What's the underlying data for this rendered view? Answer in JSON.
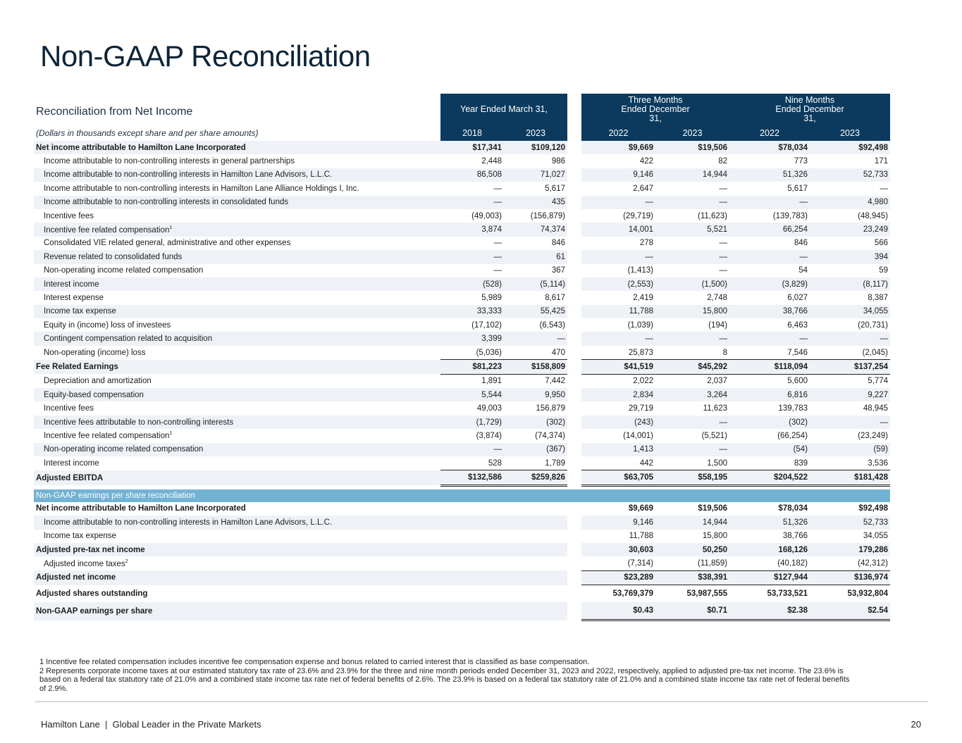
{
  "title": "Non-GAAP Reconciliation",
  "table": {
    "caption": "Reconciliation from Net Income",
    "subcaption": "(Dollars in thousands except share and per share amounts)",
    "group_headers": [
      "Year Ended March 31,",
      "Three Months Ended December 31,",
      "Nine Months Ended December 31,"
    ],
    "columns": [
      "2018",
      "2023",
      "2022",
      "2023",
      "2022",
      "2023"
    ],
    "rows": [
      {
        "label": "Net income attributable to Hamilton Lane Incorporated",
        "values": [
          "$17,341",
          "$109,120",
          "$9,669",
          "$19,506",
          "$78,034",
          "$92,498"
        ]
      },
      {
        "label": "Income attributable to non-controlling interests in general partnerships",
        "values": [
          "2,448",
          "986",
          "422",
          "82",
          "773",
          "171"
        ]
      },
      {
        "label": "Income attributable to non-controlling interests in Hamilton Lane Advisors, L.L.C.",
        "values": [
          "86,508",
          "71,027",
          "9,146",
          "14,944",
          "51,326",
          "52,733"
        ]
      },
      {
        "label": "Income attributable to non-controlling interests in Hamilton Lane Alliance Holdings I, Inc.",
        "values": [
          "—",
          "5,617",
          "2,647",
          "—",
          "5,617",
          "—"
        ]
      },
      {
        "label": "Income attributable to non-controlling interests in consolidated funds",
        "values": [
          "—",
          "435",
          "—",
          "—",
          "—",
          "4,980"
        ]
      },
      {
        "label": "Incentive fees",
        "values": [
          "(49,003)",
          "(156,879)",
          "(29,719)",
          "(11,623)",
          "(139,783)",
          "(48,945)"
        ]
      },
      {
        "label": "Incentive fee related compensation",
        "sup": "1",
        "values": [
          "3,874",
          "74,374",
          "14,001",
          "5,521",
          "66,254",
          "23,249"
        ]
      },
      {
        "label": "Consolidated VIE related general, administrative and other expenses",
        "values": [
          "—",
          "846",
          "278",
          "—",
          "846",
          "566"
        ]
      },
      {
        "label": "Revenue related to consolidated funds",
        "values": [
          "—",
          "61",
          "—",
          "—",
          "—",
          "394"
        ]
      },
      {
        "label": "Non-operating income related compensation",
        "values": [
          "—",
          "367",
          "(1,413)",
          "—",
          "54",
          "59"
        ]
      },
      {
        "label": "Interest income",
        "values": [
          "(528)",
          "(5,114)",
          "(2,553)",
          "(1,500)",
          "(3,829)",
          "(8,117)"
        ]
      },
      {
        "label": "Interest expense",
        "values": [
          "5,989",
          "8,617",
          "2,419",
          "2,748",
          "6,027",
          "8,387"
        ]
      },
      {
        "label": "Income tax expense",
        "values": [
          "33,333",
          "55,425",
          "11,788",
          "15,800",
          "38,766",
          "34,055"
        ]
      },
      {
        "label": "Equity in (income) loss of investees",
        "values": [
          "(17,102)",
          "(6,543)",
          "(1,039)",
          "(194)",
          "6,463",
          "(20,731)"
        ]
      },
      {
        "label": "Contingent compensation related to acquisition",
        "values": [
          "3,399",
          "—",
          "—",
          "—",
          "—",
          "—"
        ]
      },
      {
        "label": "Non-operating (income) loss",
        "values": [
          "(5,036)",
          "470",
          "25,873",
          "8",
          "7,546",
          "(2,045)"
        ]
      },
      {
        "label": "Fee Related Earnings",
        "values": [
          "$81,223",
          "$158,809",
          "$41,519",
          "$45,292",
          "$118,094",
          "$137,254"
        ]
      },
      {
        "label": "Depreciation and amortization",
        "values": [
          "1,891",
          "7,442",
          "2,022",
          "2,037",
          "5,600",
          "5,774"
        ]
      },
      {
        "label": "Equity-based compensation",
        "values": [
          "5,544",
          "9,950",
          "2,834",
          "3,264",
          "6,816",
          "9,227"
        ]
      },
      {
        "label": "Incentive fees",
        "values": [
          "49,003",
          "156,879",
          "29,719",
          "11,623",
          "139,783",
          "48,945"
        ]
      },
      {
        "label": "Incentive fees attributable to non-controlling interests",
        "values": [
          "(1,729)",
          "(302)",
          "(243)",
          "—",
          "(302)",
          "—"
        ]
      },
      {
        "label": "Incentive fee related compensation",
        "sup": "1",
        "values": [
          "(3,874)",
          "(74,374)",
          "(14,001)",
          "(5,521)",
          "(66,254)",
          "(23,249)"
        ]
      },
      {
        "label": "Non-operating income related compensation",
        "values": [
          "—",
          "(367)",
          "1,413",
          "—",
          "(54)",
          "(59)"
        ]
      },
      {
        "label": "Interest income",
        "values": [
          "528",
          "1,789",
          "442",
          "1,500",
          "839",
          "3,536"
        ]
      },
      {
        "label": "Adjusted EBITDA",
        "values": [
          "$132,586",
          "$259,826",
          "$63,705",
          "$58,195",
          "$204,522",
          "$181,428"
        ]
      }
    ],
    "section_label": "Non-GAAP earnings per share reconciliation",
    "section_rows": [
      {
        "label": "Net income attributable to Hamilton Lane Incorporated",
        "values": [
          "$9,669",
          "$19,506",
          "$78,034",
          "$92,498"
        ]
      },
      {
        "label": "Income attributable to non-controlling interests in Hamilton Lane Advisors, L.L.C.",
        "values": [
          "9,146",
          "14,944",
          "51,326",
          "52,733"
        ]
      },
      {
        "label": "Income tax expense",
        "values": [
          "11,788",
          "15,800",
          "38,766",
          "34,055"
        ]
      },
      {
        "label": "Adjusted pre-tax net income",
        "values": [
          "30,603",
          "50,250",
          "168,126",
          "179,286"
        ]
      },
      {
        "label": "Adjusted income taxes",
        "sup": "2",
        "values": [
          "(7,314)",
          "(11,859)",
          "(40,182)",
          "(42,312)"
        ]
      },
      {
        "label": "Adjusted net income",
        "values": [
          "$23,289",
          "$38,391",
          "$127,944",
          "$136,974"
        ]
      },
      {
        "label": "Adjusted shares outstanding",
        "values": [
          "53,769,379",
          "53,987,555",
          "53,733,521",
          "53,932,804"
        ]
      },
      {
        "label": "Non-GAAP earnings per share",
        "values": [
          "$0.43",
          "$0.71",
          "$2.38",
          "$2.54"
        ]
      }
    ]
  },
  "footnotes": [
    "1 Incentive fee related compensation includes incentive fee compensation expense and bonus related to carried interest that is classified as base compensation.",
    "2 Represents corporate income taxes at our estimated statutory tax rate of 23.6% and 23.9% for the three and nine month periods ended December 31, 2023 and 2022, respectively, applied to adjusted pre-tax net income. The 23.6% is based on a federal tax statutory rate of 21.0% and a combined state income tax rate net of federal benefits of 2.6%. The 23.9% is based on a federal tax statutory rate of 21.0% and a combined state income tax rate net of federal benefits of 2.9%."
  ],
  "footer": {
    "left": "Hamilton Lane  |  Global Leader in the Private Markets",
    "page": "20"
  }
}
